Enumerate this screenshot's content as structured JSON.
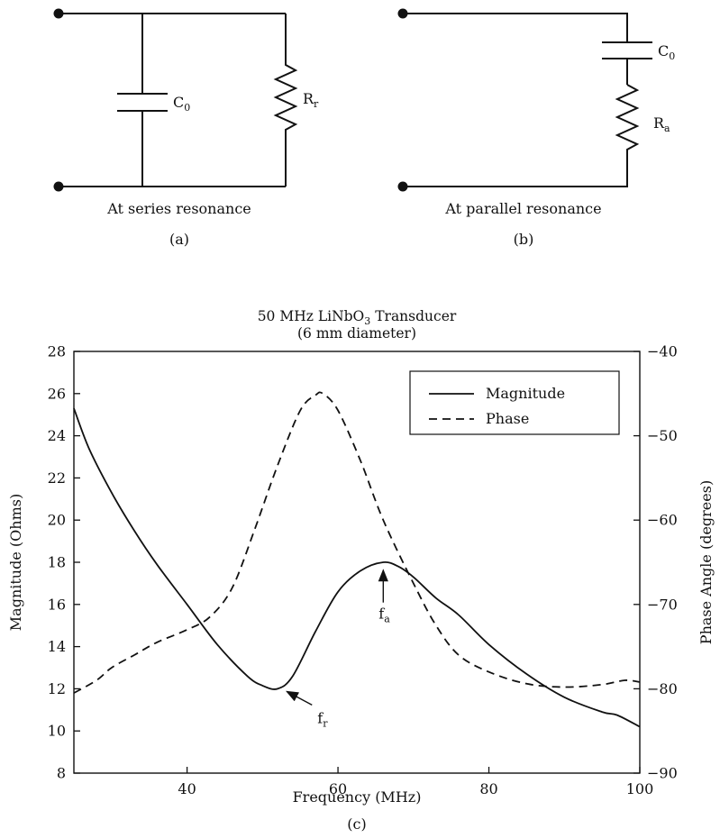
{
  "circuit_a": {
    "cap_label": "C",
    "cap_sub": "0",
    "res_label": "R",
    "res_sub": "r",
    "caption": "At series resonance",
    "panel": "(a)"
  },
  "circuit_b": {
    "cap_label": "C",
    "cap_sub": "0",
    "res_label": "R",
    "res_sub": "a",
    "caption": "At parallel resonance",
    "panel": "(b)"
  },
  "chart_panel": "(c)",
  "chart_data": {
    "type": "line",
    "title_parts": [
      "50 MHz LiNbO",
      "3",
      " Transducer"
    ],
    "subtitle": "(6 mm diameter)",
    "xlabel": "Frequency (MHz)",
    "ylabel": "Magnitude (Ohms)",
    "y2label": "Phase Angle (degrees)",
    "xlim": [
      25,
      100
    ],
    "ylim": [
      8,
      28
    ],
    "y2lim": [
      -90,
      -40
    ],
    "xticks": [
      40,
      60,
      80,
      100
    ],
    "yticks": [
      8,
      10,
      12,
      14,
      16,
      18,
      20,
      22,
      24,
      26,
      28
    ],
    "y2ticks": [
      -40,
      -50,
      -60,
      -70,
      -80,
      -90
    ],
    "y2tick_labels": [
      "−40",
      "−50",
      "−60",
      "−70",
      "−80",
      "−90"
    ],
    "grid": false,
    "legend_position": "top-right",
    "series": [
      {
        "name": "Magnitude",
        "axis": "left",
        "style": "solid",
        "x": [
          25,
          27,
          30,
          33,
          36,
          40,
          44,
          48,
          50,
          52,
          54,
          57,
          60,
          63,
          66,
          68,
          70,
          73,
          76,
          80,
          85,
          90,
          95,
          97,
          100
        ],
        "y": [
          25.3,
          23.4,
          21.3,
          19.5,
          17.9,
          16.0,
          14.1,
          12.6,
          12.15,
          12.0,
          12.6,
          14.7,
          16.6,
          17.6,
          18.0,
          17.8,
          17.3,
          16.3,
          15.5,
          14.1,
          12.7,
          11.6,
          10.9,
          10.75,
          10.2
        ]
      },
      {
        "name": "Phase",
        "axis": "right",
        "style": "dashed",
        "x": [
          25,
          28,
          30,
          33,
          36,
          40,
          43,
          46,
          49,
          52,
          55,
          57,
          58,
          60,
          63,
          66,
          70,
          73,
          76,
          80,
          85,
          90,
          95,
          98,
          100
        ],
        "y": [
          -80.5,
          -79.0,
          -77.5,
          -76.0,
          -74.5,
          -73.0,
          -71.5,
          -68.0,
          -61.0,
          -53.5,
          -47.0,
          -45.2,
          -45.0,
          -47.0,
          -53.0,
          -60.0,
          -67.5,
          -72.5,
          -76.0,
          -78.0,
          -79.4,
          -79.8,
          -79.5,
          -79.0,
          -79.2
        ]
      }
    ],
    "annotations": [
      {
        "label": "f",
        "sub": "r",
        "x": 52.5,
        "y": 12.0,
        "axis": "left"
      },
      {
        "label": "f",
        "sub": "a",
        "x": 66,
        "y": 17.8,
        "axis": "left"
      }
    ]
  }
}
